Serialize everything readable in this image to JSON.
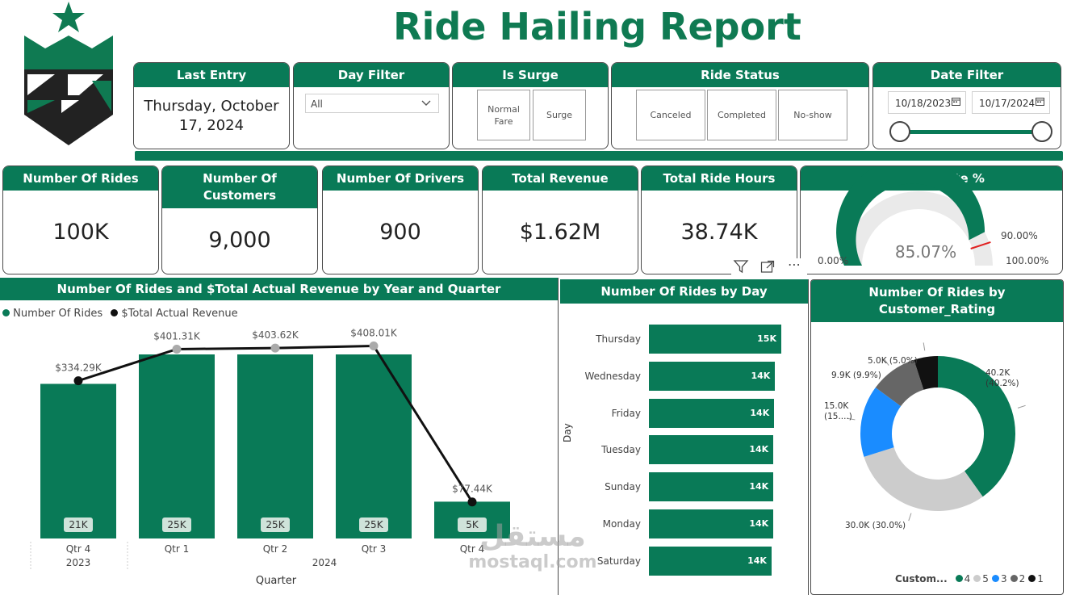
{
  "title": "Ride Hailing Report",
  "slicers": {
    "last_entry": {
      "label": "Last Entry",
      "value": "Thursday, October 17, 2024"
    },
    "day_filter": {
      "label": "Day Filter",
      "value": "All"
    },
    "is_surge": {
      "label": "Is Surge",
      "options": [
        "Normal Fare",
        "Surge"
      ]
    },
    "ride_status": {
      "label": "Ride Status",
      "options": [
        "Canceled",
        "Completed",
        "No-show"
      ]
    },
    "date_filter": {
      "label": "Date Filter",
      "start": "10/18/2023",
      "end": "10/17/2024"
    }
  },
  "kpis": {
    "rides": {
      "label": "Number Of Rides",
      "value": "100K"
    },
    "customers": {
      "label": "Number Of Customers",
      "value": "9,000"
    },
    "drivers": {
      "label": "Number Of Drivers",
      "value": "900"
    },
    "revenue": {
      "label": "Total Revenue",
      "value": "$1.62M"
    },
    "hours": {
      "label": "Total Ride Hours",
      "value": "38.74K"
    }
  },
  "gauge": {
    "label": "Success Rate %",
    "value_label": "85.07%",
    "min_label": "0.00%",
    "max_label": "100.00%",
    "target_label": "90.00%",
    "value": 85.07,
    "target": 90,
    "min": 0,
    "max": 100
  },
  "combo_chart": {
    "title": "Number Of Rides and $Total Actual Revenue by Year and Quarter",
    "legend": [
      "Number Of Rides",
      "$Total Actual Revenue"
    ],
    "xlabel": "Quarter",
    "years": [
      "2023",
      "2024"
    ]
  },
  "day_chart": {
    "title": "Number Of Rides by Day",
    "ylabel": "Day"
  },
  "donut_chart": {
    "title": "Number Of Rides by Customer_Rating",
    "legend_title": "Custom..."
  },
  "chart_data": [
    {
      "type": "bar",
      "title": "Number Of Rides and $Total Actual Revenue by Year and Quarter",
      "xlabel": "Quarter",
      "categories": [
        "Qtr 4",
        "Qtr 1",
        "Qtr 2",
        "Qtr 3",
        "Qtr 4"
      ],
      "years": [
        "2023",
        "2024",
        "2024",
        "2024",
        "2024"
      ],
      "series": [
        {
          "name": "Number Of Rides",
          "type": "bar",
          "values": [
            21000,
            25000,
            25000,
            25000,
            5000
          ],
          "labels": [
            "21K",
            "25K",
            "25K",
            "25K",
            "5K"
          ]
        },
        {
          "name": "$Total Actual Revenue",
          "type": "line",
          "values": [
            334290,
            401310,
            403620,
            408010,
            77440
          ],
          "labels": [
            "$334.29K",
            "$401.31K",
            "$403.62K",
            "$408.01K",
            "$77.44K"
          ]
        }
      ],
      "bar_max": 25000,
      "line_max": 450000
    },
    {
      "type": "bar",
      "orientation": "horizontal",
      "title": "Number Of Rides by Day",
      "ylabel": "Day",
      "categories": [
        "Thursday",
        "Wednesday",
        "Friday",
        "Tuesday",
        "Sunday",
        "Monday",
        "Saturday"
      ],
      "values": [
        15000,
        14300,
        14200,
        14100,
        14100,
        14100,
        13900
      ],
      "labels": [
        "15K",
        "14K",
        "14K",
        "14K",
        "14K",
        "14K",
        "14K"
      ]
    },
    {
      "type": "pie",
      "title": "Number Of Rides by Customer_Rating",
      "categories": [
        "4",
        "5",
        "3",
        "2",
        "1"
      ],
      "values": [
        40.2,
        30.0,
        15.0,
        9.9,
        5.0
      ],
      "labels": [
        "40.2K (40.2%)",
        "30.0K (30.0%)",
        "15.0K (15....)",
        "9.9K (9.9%)",
        "5.0K (5.0%)"
      ],
      "colors": [
        "#097a57",
        "#cccccc",
        "#1a8cff",
        "#666666",
        "#111111"
      ]
    }
  ],
  "watermark": {
    "arabic": "مستقل",
    "latin": "mostaql.com"
  }
}
